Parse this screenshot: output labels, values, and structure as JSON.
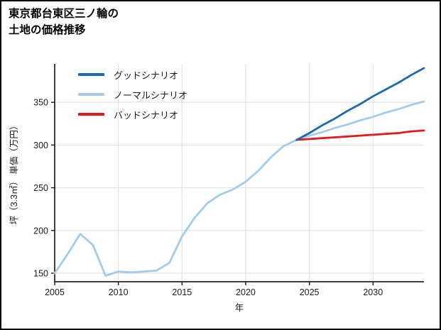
{
  "title": {
    "line1": "東京都台東区三ノ輪の",
    "line2": "土地の価格推移"
  },
  "colors": {
    "axis": "#000000",
    "grid": "#dedede",
    "text": "#1a1a1a",
    "background": "#ffffff"
  },
  "chart_data": {
    "type": "line",
    "title": "東京都台東区三ノ輪の土地の価格推移",
    "xlabel": "年",
    "ylabel": "坪（3.3㎡） 単価（万円）",
    "xlim": [
      2005,
      2034
    ],
    "ylim": [
      140,
      395
    ],
    "x_ticks": [
      2005,
      2010,
      2015,
      2020,
      2025,
      2030
    ],
    "y_ticks": [
      150,
      200,
      250,
      300,
      350
    ],
    "grid": true,
    "legend_position": "upper-left-inside",
    "series": [
      {
        "id": "good",
        "name": "グッドシナリオ",
        "color": "#1b6bb0",
        "x": [
          2024,
          2025,
          2026,
          2027,
          2028,
          2029,
          2030,
          2031,
          2032,
          2033,
          2034
        ],
        "y": [
          306,
          314,
          323,
          331,
          340,
          348,
          357,
          365,
          373,
          382,
          390
        ]
      },
      {
        "id": "normal",
        "name": "ノーマルシナリオ",
        "color": "#a5cbea",
        "x": [
          2005,
          2006,
          2007,
          2008,
          2009,
          2010,
          2011,
          2012,
          2013,
          2014,
          2015,
          2016,
          2017,
          2018,
          2019,
          2020,
          2021,
          2022,
          2023,
          2024,
          2025,
          2026,
          2027,
          2028,
          2029,
          2030,
          2031,
          2032,
          2033,
          2034
        ],
        "y": [
          150,
          172,
          196,
          183,
          147,
          152,
          151,
          152,
          153,
          162,
          193,
          215,
          232,
          242,
          248,
          257,
          270,
          286,
          299,
          306,
          311,
          315,
          320,
          324,
          329,
          333,
          338,
          342,
          347,
          351
        ]
      },
      {
        "id": "bad",
        "name": "バッドシナリオ",
        "color": "#e31a1c",
        "x": [
          2024,
          2025,
          2026,
          2027,
          2028,
          2029,
          2030,
          2031,
          2032,
          2033,
          2034
        ],
        "y": [
          306,
          307,
          308,
          309,
          310,
          311,
          312,
          313,
          314,
          316,
          317
        ]
      }
    ]
  }
}
